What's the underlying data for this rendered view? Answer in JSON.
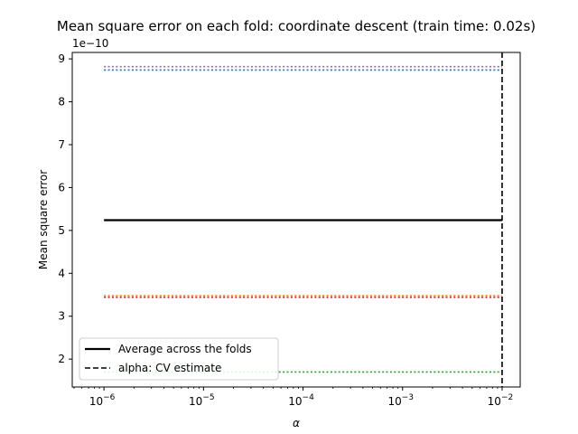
{
  "chart_data": {
    "type": "line",
    "title": "Mean square error on each fold: coordinate descent (train time: 0.02s)",
    "xlabel": "α",
    "ylabel": "Mean square error",
    "xscale": "log",
    "x_exponents": [
      -6,
      -5,
      -4,
      -3,
      -2
    ],
    "x_tick_base": "10",
    "x_tick_labels": [
      "−6",
      "−5",
      "−4",
      "−3",
      "−2"
    ],
    "xlim": [
      4.8e-07,
      0.0152
    ],
    "ylim": [
      1.35,
      9.15
    ],
    "y_ticks": [
      2,
      3,
      4,
      5,
      6,
      7,
      8,
      9
    ],
    "y_tick_labels": [
      "2",
      "3",
      "4",
      "5",
      "6",
      "7",
      "8",
      "9"
    ],
    "y_offset_text": "1e−10",
    "y_offset_multiplier": 1e-10,
    "grid": false,
    "legend_position": "lower-left",
    "fold_series": [
      {
        "x": [
          1e-06,
          0.01
        ],
        "y": [
          8.82,
          8.82
        ],
        "color": "#9467bd",
        "style": "dotted"
      },
      {
        "x": [
          1e-06,
          0.01
        ],
        "y": [
          8.74,
          8.74
        ],
        "color": "#1f77b4",
        "style": "dotted"
      },
      {
        "x": [
          1e-06,
          0.01
        ],
        "y": [
          3.48,
          3.48
        ],
        "color": "#ff7f0e",
        "style": "dotted"
      },
      {
        "x": [
          1e-06,
          0.01
        ],
        "y": [
          3.44,
          3.44
        ],
        "color": "#d62728",
        "style": "dotted"
      },
      {
        "x": [
          1e-06,
          0.01
        ],
        "y": [
          1.7,
          1.7
        ],
        "color": "#2ca02c",
        "style": "dotted"
      }
    ],
    "series": [
      {
        "name": "Average across the folds",
        "x": [
          1e-06,
          0.01
        ],
        "y": [
          5.24,
          5.24
        ],
        "color": "#000000",
        "style": "solid"
      }
    ],
    "vlines": [
      {
        "name": "alpha: CV estimate",
        "x": 0.01,
        "color": "#000000",
        "style": "dashed"
      }
    ]
  }
}
